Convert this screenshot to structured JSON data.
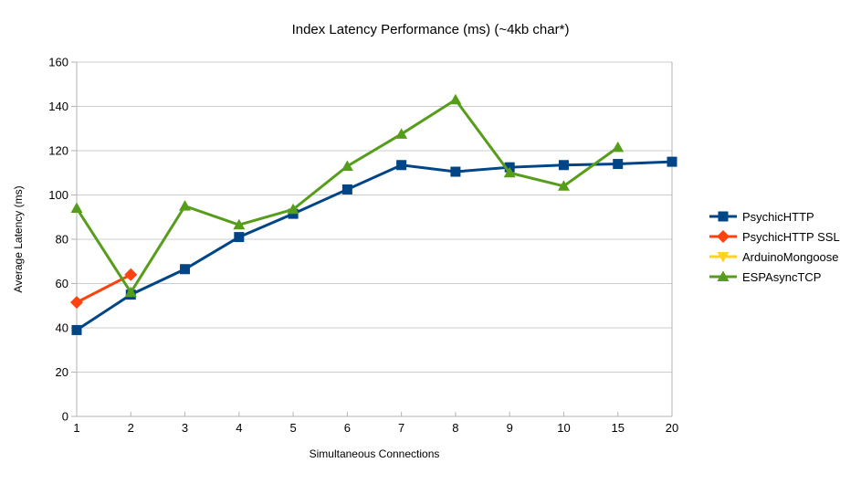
{
  "chart_data": {
    "type": "line",
    "title": "Index Latency Performance (ms) (~4kb char*)",
    "xlabel": "Simultaneous Connections",
    "ylabel": "Average Latency (ms)",
    "categories": [
      "1",
      "2",
      "3",
      "4",
      "5",
      "6",
      "7",
      "8",
      "9",
      "10",
      "15",
      "20"
    ],
    "ylim": [
      0,
      160
    ],
    "ytick_step": 20,
    "grid": "horizontal",
    "legend_position": "right",
    "colors": {
      "gridline": "#cccccc",
      "axis": "#b3b3b3",
      "text": "#000000",
      "background": "#ffffff"
    },
    "series": [
      {
        "name": "PsychicHTTP",
        "color": "#004586",
        "marker": "square",
        "values": [
          39,
          55,
          66.5,
          81,
          91.5,
          102.5,
          113.5,
          110.5,
          112.5,
          113.5,
          114,
          115
        ]
      },
      {
        "name": "PsychicHTTP SSL",
        "color": "#ff420e",
        "marker": "diamond",
        "values": [
          51.5,
          64,
          null,
          null,
          null,
          null,
          null,
          null,
          null,
          null,
          null,
          null
        ]
      },
      {
        "name": "ArduinoMongoose",
        "color": "#ffd320",
        "marker": "triangle-down",
        "values": [
          null,
          null,
          null,
          null,
          null,
          null,
          null,
          null,
          null,
          null,
          null,
          null
        ]
      },
      {
        "name": "ESPAsyncTCP",
        "color": "#579d1c",
        "marker": "triangle-up",
        "values": [
          94,
          56,
          95,
          86.5,
          93.5,
          113,
          127.5,
          143,
          110,
          104,
          121.5,
          null
        ]
      }
    ]
  }
}
